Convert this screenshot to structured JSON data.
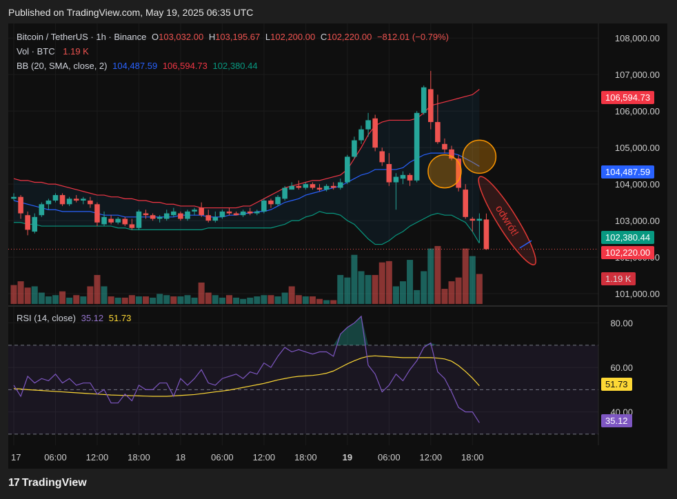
{
  "published": "Published on TradingView.com, May 19, 2025 06:35 UTC",
  "legend": {
    "symbol": "Bitcoin / TetherUS · 1h · Binance",
    "o_label": "O",
    "o": "103,032.00",
    "h_label": "H",
    "h": "103,195.67",
    "l_label": "L",
    "l": "102,200.00",
    "c_label": "C",
    "c": "102,220.00",
    "change": "−812.01 (−0.79%)",
    "vol_label": "Vol · BTC",
    "vol": "1.19 K",
    "bb_label": "BB (20, SMA, close, 2)",
    "bb_mid": "104,487.59",
    "bb_upper": "106,594.73",
    "bb_lower": "102,380.44",
    "rsi_label": "RSI (14, close)",
    "rsi": "35.12",
    "rsi_ma": "51.73"
  },
  "badges": {
    "upper": "106,594.73",
    "mid": "104,487.59",
    "lower": "102,380.44",
    "price": "102,220.00",
    "vol": "1.19 K",
    "rsi_ma": "51.73",
    "rsi": "35.12"
  },
  "annotation": "odwrót!",
  "footer": {
    "logo_mark": "17",
    "logo_text": "TradingView"
  },
  "colors": {
    "up": "#26a69a",
    "down": "#ef5350",
    "bb_mid": "#2962ff",
    "bb_upper": "#f23645",
    "bb_lower": "#089981",
    "rsi": "#7e57c2",
    "rsi_ma": "#fdd835",
    "circle": "#ff9800"
  },
  "chart_data": {
    "type": "candlestick",
    "price_axis": {
      "ylim": [
        100700,
        108400
      ],
      "ticks": [
        "108,000.00",
        "107,000.00",
        "106,000.00",
        "105,000.00",
        "104,000.00",
        "103,000.00",
        "102,000.00",
        "101,000.00"
      ],
      "tick_values": [
        108000,
        107000,
        106000,
        105000,
        104000,
        103000,
        102000,
        101000
      ]
    },
    "x_axis": {
      "ticks": [
        "17",
        "06:00",
        "12:00",
        "18:00",
        "18",
        "06:00",
        "12:00",
        "18:00",
        "19",
        "06:00",
        "12:00",
        "18:00"
      ],
      "tick_hours": [
        0,
        6,
        12,
        18,
        24,
        30,
        36,
        42,
        48,
        54,
        60,
        66
      ]
    },
    "candles": [
      {
        "o": 103600,
        "h": 103750,
        "l": 103550,
        "c": 103650
      },
      {
        "o": 103650,
        "h": 103700,
        "l": 103050,
        "c": 103200
      },
      {
        "o": 103150,
        "h": 103250,
        "l": 102600,
        "c": 102750
      },
      {
        "o": 102700,
        "h": 103200,
        "l": 102650,
        "c": 103100
      },
      {
        "o": 103150,
        "h": 103500,
        "l": 103100,
        "c": 103450
      },
      {
        "o": 103450,
        "h": 103600,
        "l": 103300,
        "c": 103550
      },
      {
        "o": 103550,
        "h": 103750,
        "l": 103500,
        "c": 103700
      },
      {
        "o": 103700,
        "h": 103750,
        "l": 103400,
        "c": 103450
      },
      {
        "o": 103450,
        "h": 103650,
        "l": 103400,
        "c": 103600
      },
      {
        "o": 103600,
        "h": 103700,
        "l": 103500,
        "c": 103550
      },
      {
        "o": 103550,
        "h": 103650,
        "l": 103450,
        "c": 103600
      },
      {
        "o": 103550,
        "h": 103650,
        "l": 103350,
        "c": 103450
      },
      {
        "o": 103450,
        "h": 103500,
        "l": 102850,
        "c": 102950
      },
      {
        "o": 102900,
        "h": 103250,
        "l": 102850,
        "c": 103100
      },
      {
        "o": 103050,
        "h": 103150,
        "l": 102900,
        "c": 102950
      },
      {
        "o": 102950,
        "h": 103100,
        "l": 102900,
        "c": 103050
      },
      {
        "o": 103050,
        "h": 103100,
        "l": 102850,
        "c": 102900
      },
      {
        "o": 102900,
        "h": 103050,
        "l": 102750,
        "c": 102800
      },
      {
        "o": 102800,
        "h": 103300,
        "l": 102750,
        "c": 103250
      },
      {
        "o": 103200,
        "h": 103300,
        "l": 103050,
        "c": 103150
      },
      {
        "o": 103150,
        "h": 103200,
        "l": 103000,
        "c": 103050
      },
      {
        "o": 103050,
        "h": 103150,
        "l": 102950,
        "c": 103100
      },
      {
        "o": 103050,
        "h": 103300,
        "l": 103000,
        "c": 103200
      },
      {
        "o": 103150,
        "h": 103350,
        "l": 103100,
        "c": 103250
      },
      {
        "o": 103200,
        "h": 103250,
        "l": 103000,
        "c": 103050
      },
      {
        "o": 103050,
        "h": 103300,
        "l": 103000,
        "c": 103250
      },
      {
        "o": 103250,
        "h": 103350,
        "l": 103150,
        "c": 103300
      },
      {
        "o": 103350,
        "h": 103500,
        "l": 103100,
        "c": 103150
      },
      {
        "o": 103150,
        "h": 103300,
        "l": 102950,
        "c": 103000
      },
      {
        "o": 103000,
        "h": 103250,
        "l": 102950,
        "c": 103100
      },
      {
        "o": 103100,
        "h": 103300,
        "l": 103050,
        "c": 103250
      },
      {
        "o": 103250,
        "h": 103350,
        "l": 103150,
        "c": 103200
      },
      {
        "o": 103200,
        "h": 103250,
        "l": 103150,
        "c": 103150
      },
      {
        "o": 103150,
        "h": 103300,
        "l": 103100,
        "c": 103250
      },
      {
        "o": 103250,
        "h": 103350,
        "l": 103150,
        "c": 103200
      },
      {
        "o": 103200,
        "h": 103300,
        "l": 103150,
        "c": 103250
      },
      {
        "o": 103250,
        "h": 103600,
        "l": 103200,
        "c": 103550
      },
      {
        "o": 103550,
        "h": 103600,
        "l": 103350,
        "c": 103450
      },
      {
        "o": 103450,
        "h": 103700,
        "l": 103400,
        "c": 103650
      },
      {
        "o": 103600,
        "h": 103950,
        "l": 103550,
        "c": 103900
      },
      {
        "o": 103850,
        "h": 104050,
        "l": 103850,
        "c": 103950
      },
      {
        "o": 103950,
        "h": 104100,
        "l": 103850,
        "c": 103900
      },
      {
        "o": 103900,
        "h": 104050,
        "l": 103850,
        "c": 104000
      },
      {
        "o": 104000,
        "h": 104050,
        "l": 103850,
        "c": 103900
      },
      {
        "o": 103900,
        "h": 104000,
        "l": 103800,
        "c": 103850
      },
      {
        "o": 103850,
        "h": 104000,
        "l": 103800,
        "c": 103950
      },
      {
        "o": 103950,
        "h": 104050,
        "l": 103850,
        "c": 103900
      },
      {
        "o": 103900,
        "h": 104150,
        "l": 103850,
        "c": 104050
      },
      {
        "o": 104050,
        "h": 104800,
        "l": 104000,
        "c": 104750
      },
      {
        "o": 104750,
        "h": 105300,
        "l": 104700,
        "c": 105200
      },
      {
        "o": 105200,
        "h": 105600,
        "l": 105100,
        "c": 105500
      },
      {
        "o": 105500,
        "h": 105950,
        "l": 105300,
        "c": 105750
      },
      {
        "o": 105800,
        "h": 105900,
        "l": 104900,
        "c": 105000
      },
      {
        "o": 104900,
        "h": 105000,
        "l": 104500,
        "c": 104600
      },
      {
        "o": 104550,
        "h": 104850,
        "l": 103950,
        "c": 104050
      },
      {
        "o": 104050,
        "h": 104300,
        "l": 103300,
        "c": 104200
      },
      {
        "o": 104150,
        "h": 104350,
        "l": 104000,
        "c": 104250
      },
      {
        "o": 104250,
        "h": 104300,
        "l": 103950,
        "c": 104100
      },
      {
        "o": 104100,
        "h": 106000,
        "l": 104050,
        "c": 105950
      },
      {
        "o": 105950,
        "h": 106700,
        "l": 105900,
        "c": 106650
      },
      {
        "o": 106600,
        "h": 107100,
        "l": 105500,
        "c": 105700
      },
      {
        "o": 105700,
        "h": 106450,
        "l": 105100,
        "c": 105150
      },
      {
        "o": 105100,
        "h": 105250,
        "l": 104850,
        "c": 104950
      },
      {
        "o": 104950,
        "h": 105050,
        "l": 104650,
        "c": 104700
      },
      {
        "o": 104700,
        "h": 104800,
        "l": 103800,
        "c": 103900
      },
      {
        "o": 103850,
        "h": 104000,
        "l": 103050,
        "c": 103100
      },
      {
        "o": 103050,
        "h": 103100,
        "l": 102700,
        "c": 103000
      },
      {
        "o": 103000,
        "h": 103200,
        "l": 102400,
        "c": 103050
      },
      {
        "o": 103032,
        "h": 103195.67,
        "l": 102200,
        "c": 102220
      }
    ],
    "bb_upper": [
      104150,
      104100,
      104100,
      104050,
      104050,
      104000,
      104000,
      103950,
      103900,
      103850,
      103800,
      103750,
      103700,
      103700,
      103650,
      103650,
      103600,
      103600,
      103550,
      103550,
      103500,
      103500,
      103450,
      103450,
      103400,
      103400,
      103400,
      103350,
      103350,
      103350,
      103350,
      103350,
      103350,
      103400,
      103400,
      103500,
      103600,
      103700,
      103800,
      103900,
      103950,
      104000,
      104050,
      104100,
      104100,
      104150,
      104200,
      104250,
      104400,
      104700,
      105000,
      105350,
      105600,
      105700,
      105750,
      105750,
      105750,
      105750,
      105800,
      105950,
      106150,
      106200,
      106250,
      106300,
      106350,
      106400,
      106450,
      106594.73
    ],
    "bb_mid": [
      103550,
      103500,
      103450,
      103400,
      103350,
      103300,
      103300,
      103250,
      103250,
      103250,
      103250,
      103250,
      103200,
      103150,
      103150,
      103150,
      103100,
      103100,
      103100,
      103100,
      103100,
      103100,
      103100,
      103100,
      103150,
      103150,
      103150,
      103150,
      103100,
      103100,
      103100,
      103150,
      103150,
      103200,
      103200,
      103250,
      103250,
      103300,
      103400,
      103500,
      103550,
      103600,
      103700,
      103750,
      103800,
      103850,
      103900,
      103950,
      104050,
      104150,
      104250,
      104300,
      104400,
      104400,
      104400,
      104400,
      104450,
      104600,
      104700,
      104800,
      104850,
      104850,
      104850,
      104850,
      104800,
      104700,
      104600,
      104487.59
    ],
    "bb_lower": [
      102950,
      102950,
      102900,
      102900,
      102850,
      102850,
      102850,
      102850,
      102850,
      102850,
      102850,
      102850,
      102850,
      102850,
      102850,
      102800,
      102800,
      102750,
      102750,
      102750,
      102750,
      102750,
      102750,
      102750,
      102750,
      102750,
      102750,
      102750,
      102800,
      102800,
      102800,
      102800,
      102800,
      102800,
      102800,
      102800,
      102800,
      102800,
      102850,
      102900,
      103000,
      103000,
      103100,
      103150,
      103250,
      103200,
      103200,
      103150,
      103000,
      102900,
      102700,
      102500,
      102350,
      102350,
      102450,
      102600,
      102700,
      102850,
      102950,
      103050,
      103150,
      103200,
      103150,
      103150,
      103050,
      102950,
      102700,
      102380.44
    ],
    "volume": [
      {
        "v": 0.75,
        "up": false
      },
      {
        "v": 0.9,
        "up": false
      },
      {
        "v": 0.65,
        "up": false
      },
      {
        "v": 0.7,
        "up": true
      },
      {
        "v": 0.45,
        "up": true
      },
      {
        "v": 0.3,
        "up": true
      },
      {
        "v": 0.35,
        "up": true
      },
      {
        "v": 0.5,
        "up": false
      },
      {
        "v": 0.25,
        "up": true
      },
      {
        "v": 0.35,
        "up": false
      },
      {
        "v": 0.3,
        "up": true
      },
      {
        "v": 0.7,
        "up": false
      },
      {
        "v": 1.15,
        "up": false
      },
      {
        "v": 0.7,
        "up": true
      },
      {
        "v": 0.3,
        "up": false
      },
      {
        "v": 0.25,
        "up": true
      },
      {
        "v": 0.25,
        "up": false
      },
      {
        "v": 0.35,
        "up": false
      },
      {
        "v": 0.3,
        "up": true
      },
      {
        "v": 0.3,
        "up": false
      },
      {
        "v": 0.25,
        "up": true
      },
      {
        "v": 0.4,
        "up": true
      },
      {
        "v": 0.35,
        "up": true
      },
      {
        "v": 0.3,
        "up": false
      },
      {
        "v": 0.3,
        "up": true
      },
      {
        "v": 0.35,
        "up": true
      },
      {
        "v": 0.25,
        "up": true
      },
      {
        "v": 0.85,
        "up": false
      },
      {
        "v": 0.45,
        "up": false
      },
      {
        "v": 0.35,
        "up": true
      },
      {
        "v": 0.25,
        "up": true
      },
      {
        "v": 0.35,
        "up": false
      },
      {
        "v": 0.25,
        "up": true
      },
      {
        "v": 0.2,
        "up": true
      },
      {
        "v": 0.25,
        "up": true
      },
      {
        "v": 0.3,
        "up": true
      },
      {
        "v": 0.35,
        "up": true
      },
      {
        "v": 0.35,
        "up": false
      },
      {
        "v": 0.3,
        "up": true
      },
      {
        "v": 0.45,
        "up": true
      },
      {
        "v": 0.7,
        "up": false
      },
      {
        "v": 0.35,
        "up": false
      },
      {
        "v": 0.3,
        "up": true
      },
      {
        "v": 0.3,
        "up": false
      },
      {
        "v": 0.2,
        "up": false
      },
      {
        "v": 0.15,
        "up": true
      },
      {
        "v": 0.15,
        "up": false
      },
      {
        "v": 1.15,
        "up": true
      },
      {
        "v": 1.05,
        "up": true
      },
      {
        "v": 1.95,
        "up": true
      },
      {
        "v": 1.3,
        "up": true
      },
      {
        "v": 1.15,
        "up": true
      },
      {
        "v": 1.15,
        "up": false
      },
      {
        "v": 1.65,
        "up": false
      },
      {
        "v": 1.7,
        "up": false
      },
      {
        "v": 0.7,
        "up": true
      },
      {
        "v": 0.9,
        "up": true
      },
      {
        "v": 1.75,
        "up": true
      },
      {
        "v": 0.55,
        "up": true
      },
      {
        "v": 1.3,
        "up": true
      },
      {
        "v": 2.2,
        "up": true
      },
      {
        "v": 2.3,
        "up": false
      },
      {
        "v": 0.6,
        "up": false
      },
      {
        "v": 0.9,
        "up": false
      },
      {
        "v": 1.05,
        "up": false
      },
      {
        "v": 2.2,
        "up": false
      },
      {
        "v": 1.9,
        "up": true
      },
      {
        "v": 1.19,
        "up": false
      }
    ],
    "volume_max": 2.6,
    "rsi_axis": {
      "ylim": [
        25,
        87
      ],
      "ticks": [
        "80.00",
        "60.00",
        "40.00"
      ],
      "tick_values": [
        80,
        60,
        40
      ],
      "bands": [
        70,
        50,
        30
      ]
    },
    "rsi": [
      52,
      47,
      56,
      53,
      55,
      54,
      57,
      53,
      55,
      52,
      53,
      53,
      48,
      50,
      44,
      44,
      48,
      45,
      52,
      50,
      50,
      53,
      53,
      47,
      55,
      52,
      55,
      59,
      53,
      52,
      55,
      56,
      57,
      55,
      58,
      57,
      62,
      60,
      65,
      69,
      67,
      68,
      67,
      66,
      67,
      67,
      65,
      75,
      78,
      80,
      83,
      61,
      57,
      49,
      52,
      57,
      54,
      59,
      63,
      69,
      71,
      58,
      55,
      49,
      42,
      40,
      40,
      35.12
    ],
    "rsi_ma": [
      50.5,
      50.3,
      50.0,
      49.8,
      49.6,
      49.4,
      49.2,
      49.0,
      48.8,
      48.6,
      48.4,
      48.2,
      48.0,
      47.8,
      47.6,
      47.5,
      47.4,
      47.3,
      47.2,
      47.1,
      47.0,
      47.0,
      47.0,
      47.2,
      47.4,
      47.6,
      47.8,
      48.2,
      48.6,
      49.0,
      49.4,
      49.8,
      50.4,
      51.0,
      51.6,
      52.2,
      52.8,
      53.6,
      54.4,
      55.0,
      55.6,
      56.0,
      56.2,
      56.4,
      56.8,
      57.4,
      58.4,
      60.0,
      61.6,
      63.0,
      64.2,
      65.0,
      65.2,
      65.0,
      64.8,
      64.6,
      64.4,
      64.4,
      64.4,
      64.4,
      64.4,
      64.2,
      63.8,
      62.8,
      60.8,
      58.2,
      55.2,
      51.73
    ]
  }
}
